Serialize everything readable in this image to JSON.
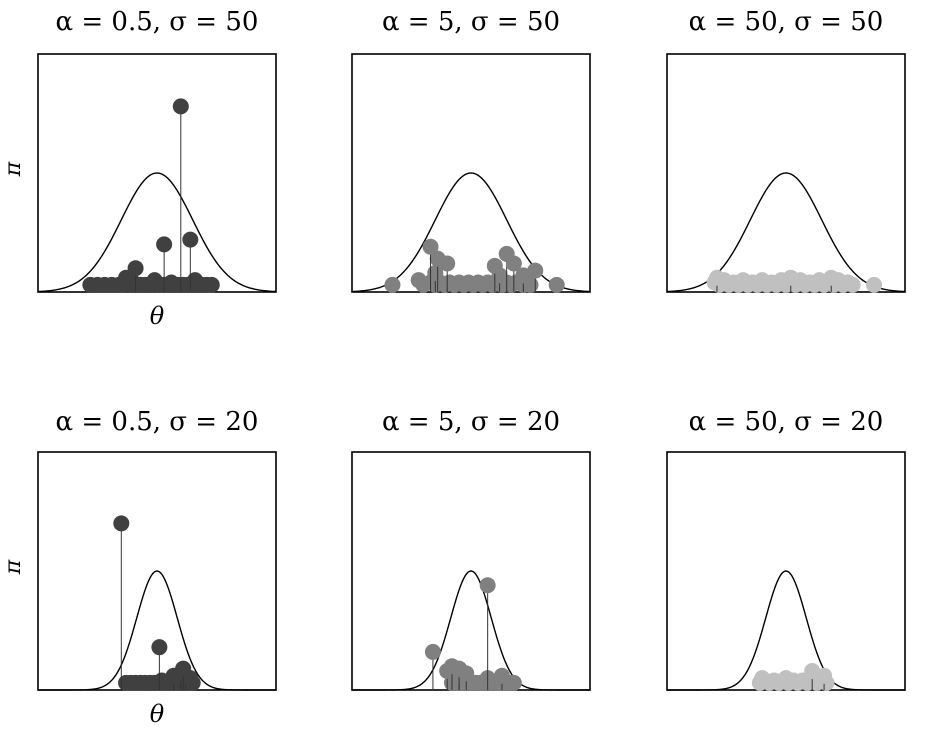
{
  "chart_data": [
    {
      "type": "scatter",
      "title": "α = 0.5, σ = 50",
      "alpha": 0.5,
      "sigma": 50,
      "ylabel": "π",
      "xlabel": "θ",
      "marker_color": "#404040",
      "atoms": [
        {
          "x": 0.22,
          "y": 0.03
        },
        {
          "x": 0.25,
          "y": 0.03
        },
        {
          "x": 0.28,
          "y": 0.03
        },
        {
          "x": 0.31,
          "y": 0.03
        },
        {
          "x": 0.34,
          "y": 0.03
        },
        {
          "x": 0.36,
          "y": 0.03
        },
        {
          "x": 0.37,
          "y": 0.06
        },
        {
          "x": 0.39,
          "y": 0.03
        },
        {
          "x": 0.41,
          "y": 0.03
        },
        {
          "x": 0.43,
          "y": 0.03
        },
        {
          "x": 0.45,
          "y": 0.03
        },
        {
          "x": 0.47,
          "y": 0.03
        },
        {
          "x": 0.49,
          "y": 0.03
        },
        {
          "x": 0.51,
          "y": 0.03
        },
        {
          "x": 0.53,
          "y": 0.03
        },
        {
          "x": 0.55,
          "y": 0.03
        },
        {
          "x": 0.57,
          "y": 0.03
        },
        {
          "x": 0.59,
          "y": 0.03
        },
        {
          "x": 0.61,
          "y": 0.03
        },
        {
          "x": 0.63,
          "y": 0.03
        },
        {
          "x": 0.65,
          "y": 0.03
        },
        {
          "x": 0.67,
          "y": 0.03
        },
        {
          "x": 0.69,
          "y": 0.03
        },
        {
          "x": 0.71,
          "y": 0.03
        },
        {
          "x": 0.73,
          "y": 0.03
        },
        {
          "x": 0.4,
          "y": 0.04
        },
        {
          "x": 0.56,
          "y": 0.04
        },
        {
          "x": 0.66,
          "y": 0.05
        },
        {
          "x": 0.49,
          "y": 0.05
        },
        {
          "x": 0.41,
          "y": 0.1
        },
        {
          "x": 0.53,
          "y": 0.2
        },
        {
          "x": 0.64,
          "y": 0.22
        },
        {
          "x": 0.6,
          "y": 0.78
        }
      ]
    },
    {
      "type": "scatter",
      "title": "α = 5, σ = 50",
      "alpha": 5,
      "sigma": 50,
      "marker_color": "#808080",
      "atoms": [
        {
          "x": 0.17,
          "y": 0.03
        },
        {
          "x": 0.28,
          "y": 0.05
        },
        {
          "x": 0.3,
          "y": 0.03
        },
        {
          "x": 0.33,
          "y": 0.04
        },
        {
          "x": 0.35,
          "y": 0.03
        },
        {
          "x": 0.37,
          "y": 0.04
        },
        {
          "x": 0.39,
          "y": 0.03
        },
        {
          "x": 0.41,
          "y": 0.04
        },
        {
          "x": 0.43,
          "y": 0.03
        },
        {
          "x": 0.45,
          "y": 0.04
        },
        {
          "x": 0.47,
          "y": 0.03
        },
        {
          "x": 0.49,
          "y": 0.04
        },
        {
          "x": 0.51,
          "y": 0.03
        },
        {
          "x": 0.53,
          "y": 0.04
        },
        {
          "x": 0.55,
          "y": 0.03
        },
        {
          "x": 0.57,
          "y": 0.04
        },
        {
          "x": 0.59,
          "y": 0.03
        },
        {
          "x": 0.61,
          "y": 0.04
        },
        {
          "x": 0.63,
          "y": 0.03
        },
        {
          "x": 0.65,
          "y": 0.04
        },
        {
          "x": 0.67,
          "y": 0.03
        },
        {
          "x": 0.69,
          "y": 0.04
        },
        {
          "x": 0.72,
          "y": 0.03
        },
        {
          "x": 0.75,
          "y": 0.03
        },
        {
          "x": 0.86,
          "y": 0.03
        },
        {
          "x": 0.35,
          "y": 0.08
        },
        {
          "x": 0.62,
          "y": 0.07
        },
        {
          "x": 0.72,
          "y": 0.07
        },
        {
          "x": 0.4,
          "y": 0.12
        },
        {
          "x": 0.36,
          "y": 0.14
        },
        {
          "x": 0.6,
          "y": 0.11
        },
        {
          "x": 0.65,
          "y": 0.16
        },
        {
          "x": 0.77,
          "y": 0.09
        },
        {
          "x": 0.68,
          "y": 0.12
        },
        {
          "x": 0.33,
          "y": 0.19
        }
      ]
    },
    {
      "type": "scatter",
      "title": "α = 50, σ = 50",
      "alpha": 50,
      "sigma": 50,
      "marker_color": "#c0c0c0",
      "atoms": [
        {
          "x": 0.2,
          "y": 0.04
        },
        {
          "x": 0.22,
          "y": 0.03
        },
        {
          "x": 0.24,
          "y": 0.05
        },
        {
          "x": 0.26,
          "y": 0.03
        },
        {
          "x": 0.28,
          "y": 0.04
        },
        {
          "x": 0.3,
          "y": 0.03
        },
        {
          "x": 0.32,
          "y": 0.05
        },
        {
          "x": 0.34,
          "y": 0.03
        },
        {
          "x": 0.36,
          "y": 0.04
        },
        {
          "x": 0.38,
          "y": 0.03
        },
        {
          "x": 0.4,
          "y": 0.05
        },
        {
          "x": 0.42,
          "y": 0.03
        },
        {
          "x": 0.44,
          "y": 0.04
        },
        {
          "x": 0.46,
          "y": 0.03
        },
        {
          "x": 0.48,
          "y": 0.05
        },
        {
          "x": 0.5,
          "y": 0.03
        },
        {
          "x": 0.52,
          "y": 0.04
        },
        {
          "x": 0.54,
          "y": 0.03
        },
        {
          "x": 0.56,
          "y": 0.05
        },
        {
          "x": 0.58,
          "y": 0.03
        },
        {
          "x": 0.6,
          "y": 0.04
        },
        {
          "x": 0.62,
          "y": 0.03
        },
        {
          "x": 0.64,
          "y": 0.05
        },
        {
          "x": 0.66,
          "y": 0.03
        },
        {
          "x": 0.68,
          "y": 0.04
        },
        {
          "x": 0.7,
          "y": 0.03
        },
        {
          "x": 0.72,
          "y": 0.05
        },
        {
          "x": 0.74,
          "y": 0.03
        },
        {
          "x": 0.76,
          "y": 0.04
        },
        {
          "x": 0.78,
          "y": 0.03
        },
        {
          "x": 0.87,
          "y": 0.03
        },
        {
          "x": 0.21,
          "y": 0.06
        },
        {
          "x": 0.52,
          "y": 0.06
        },
        {
          "x": 0.69,
          "y": 0.06
        }
      ]
    },
    {
      "type": "scatter",
      "title": "α = 0.5, σ = 20",
      "alpha": 0.5,
      "sigma": 20,
      "ylabel": "π",
      "xlabel": "θ",
      "marker_color": "#404040",
      "atoms": [
        {
          "x": 0.37,
          "y": 0.03
        },
        {
          "x": 0.39,
          "y": 0.03
        },
        {
          "x": 0.41,
          "y": 0.03
        },
        {
          "x": 0.43,
          "y": 0.03
        },
        {
          "x": 0.45,
          "y": 0.03
        },
        {
          "x": 0.47,
          "y": 0.03
        },
        {
          "x": 0.49,
          "y": 0.03
        },
        {
          "x": 0.51,
          "y": 0.03
        },
        {
          "x": 0.53,
          "y": 0.03
        },
        {
          "x": 0.55,
          "y": 0.03
        },
        {
          "x": 0.57,
          "y": 0.03
        },
        {
          "x": 0.59,
          "y": 0.03
        },
        {
          "x": 0.61,
          "y": 0.03
        },
        {
          "x": 0.63,
          "y": 0.03
        },
        {
          "x": 0.65,
          "y": 0.03
        },
        {
          "x": 0.58,
          "y": 0.04
        },
        {
          "x": 0.6,
          "y": 0.05
        },
        {
          "x": 0.57,
          "y": 0.06
        },
        {
          "x": 0.62,
          "y": 0.06
        },
        {
          "x": 0.64,
          "y": 0.05
        },
        {
          "x": 0.6,
          "y": 0.07
        },
        {
          "x": 0.61,
          "y": 0.09
        },
        {
          "x": 0.52,
          "y": 0.04
        },
        {
          "x": 0.51,
          "y": 0.18
        },
        {
          "x": 0.35,
          "y": 0.7
        }
      ]
    },
    {
      "type": "scatter",
      "title": "α = 5, σ = 20",
      "alpha": 5,
      "sigma": 20,
      "marker_color": "#808080",
      "atoms": [
        {
          "x": 0.42,
          "y": 0.03
        },
        {
          "x": 0.44,
          "y": 0.03
        },
        {
          "x": 0.46,
          "y": 0.03
        },
        {
          "x": 0.48,
          "y": 0.03
        },
        {
          "x": 0.5,
          "y": 0.03
        },
        {
          "x": 0.52,
          "y": 0.03
        },
        {
          "x": 0.54,
          "y": 0.03
        },
        {
          "x": 0.56,
          "y": 0.03
        },
        {
          "x": 0.58,
          "y": 0.03
        },
        {
          "x": 0.6,
          "y": 0.03
        },
        {
          "x": 0.62,
          "y": 0.03
        },
        {
          "x": 0.64,
          "y": 0.03
        },
        {
          "x": 0.66,
          "y": 0.03
        },
        {
          "x": 0.68,
          "y": 0.03
        },
        {
          "x": 0.45,
          "y": 0.06
        },
        {
          "x": 0.4,
          "y": 0.08
        },
        {
          "x": 0.42,
          "y": 0.1
        },
        {
          "x": 0.45,
          "y": 0.09
        },
        {
          "x": 0.48,
          "y": 0.07
        },
        {
          "x": 0.63,
          "y": 0.06
        },
        {
          "x": 0.57,
          "y": 0.05
        },
        {
          "x": 0.34,
          "y": 0.16
        },
        {
          "x": 0.57,
          "y": 0.44
        }
      ]
    },
    {
      "type": "scatter",
      "title": "α = 50, σ = 20",
      "alpha": 50,
      "sigma": 20,
      "marker_color": "#c0c0c0",
      "atoms": [
        {
          "x": 0.39,
          "y": 0.03
        },
        {
          "x": 0.41,
          "y": 0.04
        },
        {
          "x": 0.43,
          "y": 0.03
        },
        {
          "x": 0.45,
          "y": 0.04
        },
        {
          "x": 0.47,
          "y": 0.03
        },
        {
          "x": 0.49,
          "y": 0.04
        },
        {
          "x": 0.51,
          "y": 0.03
        },
        {
          "x": 0.53,
          "y": 0.04
        },
        {
          "x": 0.55,
          "y": 0.03
        },
        {
          "x": 0.57,
          "y": 0.04
        },
        {
          "x": 0.59,
          "y": 0.03
        },
        {
          "x": 0.61,
          "y": 0.04
        },
        {
          "x": 0.63,
          "y": 0.03
        },
        {
          "x": 0.65,
          "y": 0.04
        },
        {
          "x": 0.67,
          "y": 0.03
        },
        {
          "x": 0.4,
          "y": 0.05
        },
        {
          "x": 0.5,
          "y": 0.05
        },
        {
          "x": 0.6,
          "y": 0.05
        },
        {
          "x": 0.66,
          "y": 0.06
        },
        {
          "x": 0.61,
          "y": 0.08
        }
      ]
    }
  ],
  "colors": {
    "axes": "#000000",
    "curve": "#000000",
    "stem": "#333333"
  }
}
